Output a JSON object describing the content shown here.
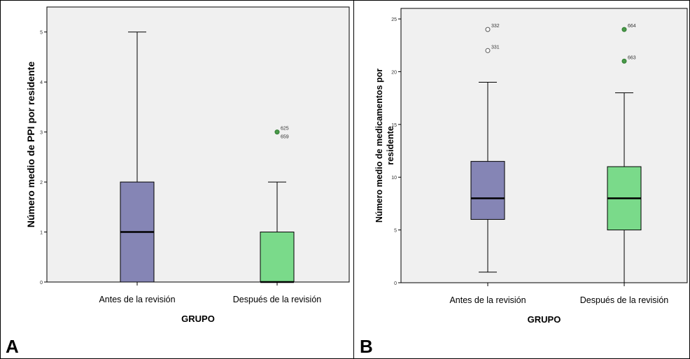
{
  "panels": {
    "a": {
      "letter": "A"
    },
    "b": {
      "letter": "B"
    }
  },
  "colors": {
    "plot_background": "#f0f0f0",
    "box_antes": "#8585b5",
    "box_despues": "#7ada8a",
    "outlier_antes": "#ffffff",
    "outlier_despues": "#4a9a4a",
    "median_line": "#000000"
  },
  "chart_data": [
    {
      "type": "boxplot",
      "panel": "A",
      "title": "",
      "xlabel": "GRUPO",
      "ylabel": "Número medio de PPI por residente",
      "ylim": [
        0,
        5.5
      ],
      "yticks": [
        "0",
        "1",
        "2",
        "3",
        "4",
        "5"
      ],
      "grid": false,
      "legend": "none",
      "categories": [
        "Antes de la revisión",
        "Después de la revisión"
      ],
      "boxes": [
        {
          "category": "Antes de la revisión",
          "min": 0,
          "q1": 0,
          "median": 1,
          "q3": 2,
          "max": 5,
          "outliers": []
        },
        {
          "category": "Después de la revisión",
          "min": 0,
          "q1": 0,
          "median": 0,
          "q3": 1,
          "max": 2,
          "outliers": [
            {
              "value": 3,
              "labels": [
                "625",
                "659"
              ]
            }
          ]
        }
      ]
    },
    {
      "type": "boxplot",
      "panel": "B",
      "title": "",
      "xlabel": "GRUPO",
      "ylabel": "Número medio de medicamentos por residente",
      "ylim": [
        0,
        26
      ],
      "yticks": [
        "0",
        "5",
        "10",
        "15",
        "20",
        "25"
      ],
      "grid": false,
      "legend": "none",
      "categories": [
        "Antes de la revisión",
        "Después de la revisión"
      ],
      "boxes": [
        {
          "category": "Antes de la revisión",
          "min": 1,
          "q1": 6,
          "median": 8,
          "q3": 11.5,
          "max": 19,
          "outliers": [
            {
              "value": 24,
              "labels": [
                "332"
              ]
            },
            {
              "value": 22,
              "labels": [
                "331"
              ]
            }
          ]
        },
        {
          "category": "Después de la revisión",
          "min": 0,
          "q1": 5,
          "median": 8,
          "q3": 11,
          "max": 18,
          "outliers": [
            {
              "value": 24,
              "labels": [
                "664"
              ]
            },
            {
              "value": 21,
              "labels": [
                "663"
              ]
            }
          ]
        }
      ]
    }
  ]
}
